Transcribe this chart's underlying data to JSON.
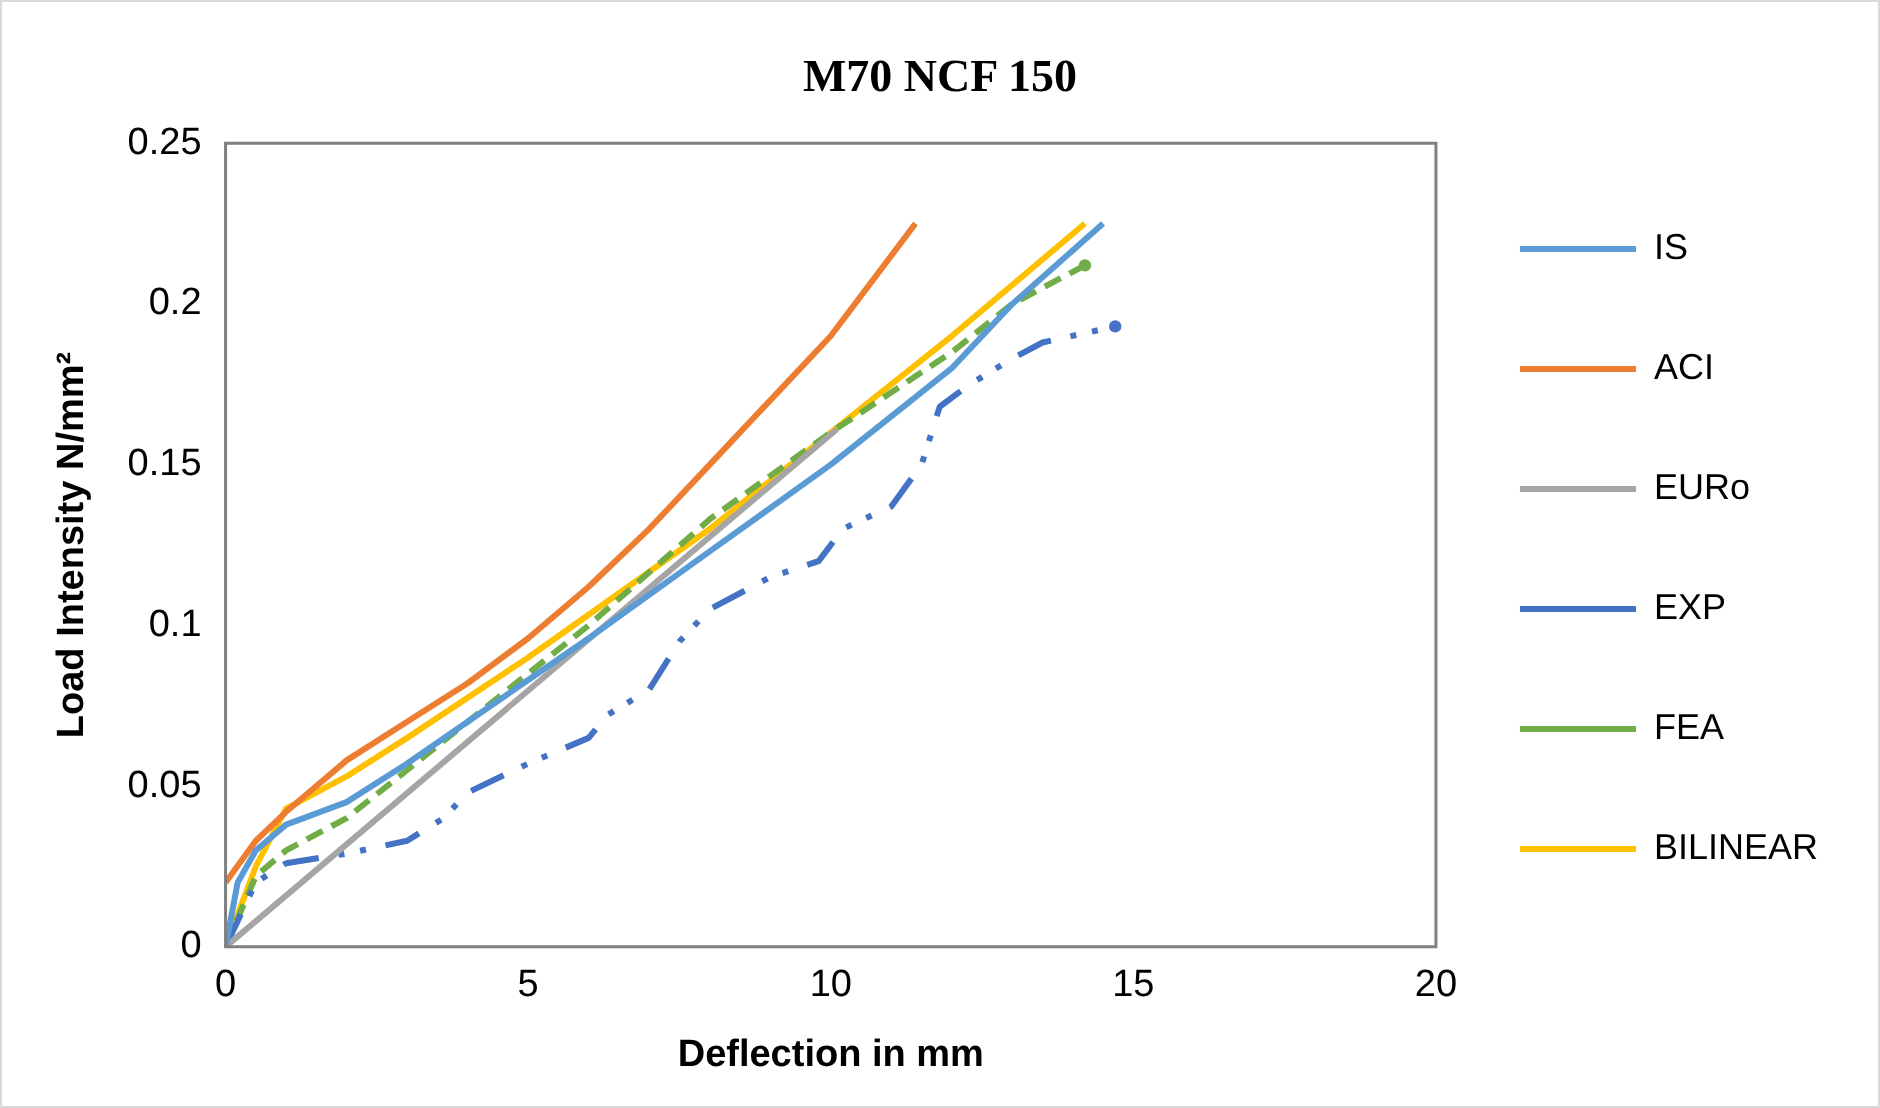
{
  "chart_data": {
    "type": "line",
    "title": "M70 NCF 150",
    "xlabel": "Deflection in mm",
    "ylabel": "Load Intensity N/mm²",
    "xlim": [
      0,
      20
    ],
    "xticks": [
      0,
      5,
      10,
      15,
      20
    ],
    "ylim": [
      0,
      0.25
    ],
    "yticks": [
      0,
      0.05,
      0.1,
      0.15,
      0.2,
      0.25
    ],
    "grid": false,
    "legend": "right",
    "marker": "none",
    "series": [
      {
        "name": "IS",
        "color": "#5b9bd5",
        "line_style": "solid",
        "x": [
          0,
          0.2,
          0.5,
          1,
          2,
          3,
          4,
          5,
          6,
          8,
          10,
          12,
          13,
          14.5
        ],
        "values": [
          0,
          0.02,
          0.03,
          0.038,
          0.045,
          0.057,
          0.07,
          0.083,
          0.096,
          0.123,
          0.15,
          0.18,
          0.2,
          0.225
        ]
      },
      {
        "name": "ACI",
        "color": "#ed7d31",
        "line_style": "solid",
        "x": [
          0,
          0.5,
          1,
          2,
          3,
          4,
          5,
          6,
          7,
          8,
          9,
          10,
          11.4
        ],
        "values": [
          0.02,
          0.033,
          0.042,
          0.058,
          0.07,
          0.082,
          0.096,
          0.112,
          0.13,
          0.15,
          0.17,
          0.19,
          0.225
        ]
      },
      {
        "name": "EURo",
        "color": "#a5a5a5",
        "line_style": "solid",
        "x": [
          0,
          10.1
        ],
        "values": [
          0,
          0.161
        ]
      },
      {
        "name": "EXP",
        "color": "#4472c4",
        "line_style": "dashdot",
        "x": [
          0,
          0.5,
          1,
          2,
          3,
          3.6,
          4,
          5,
          6,
          6.3,
          7,
          7.5,
          8,
          9,
          9.8,
          10.2,
          11,
          11.5,
          11.8,
          12.3,
          13,
          13.5,
          14.7
        ],
        "values": [
          0,
          0.02,
          0.026,
          0.029,
          0.033,
          0.04,
          0.048,
          0.057,
          0.065,
          0.072,
          0.08,
          0.095,
          0.105,
          0.115,
          0.12,
          0.13,
          0.137,
          0.15,
          0.168,
          0.175,
          0.183,
          0.188,
          0.193
        ]
      },
      {
        "name": "FEA",
        "color": "#70ad47",
        "line_style": "dashed",
        "x": [
          0,
          0.5,
          1,
          2,
          3,
          4,
          6,
          8,
          10,
          12,
          13,
          14.2
        ],
        "values": [
          0,
          0.022,
          0.03,
          0.04,
          0.055,
          0.07,
          0.1,
          0.133,
          0.16,
          0.185,
          0.2,
          0.212
        ]
      },
      {
        "name": "BILINEAR",
        "color": "#ffc000",
        "line_style": "solid",
        "x": [
          0,
          0.5,
          1,
          2,
          3,
          5,
          8,
          10,
          12,
          14.2
        ],
        "values": [
          0,
          0.025,
          0.043,
          0.053,
          0.065,
          0.09,
          0.13,
          0.16,
          0.19,
          0.225
        ]
      }
    ]
  }
}
